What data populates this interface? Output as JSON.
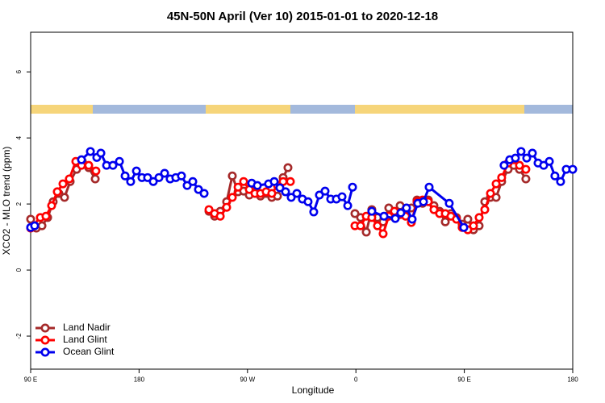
{
  "chart_data": {
    "type": "line",
    "title": "45N-50N April (Ver 10)   2015-01-01 to 2020-12-18",
    "x_label": "Longitude",
    "y_label": "XCO2 - MLO trend (ppm)",
    "xlim": [
      90,
      540
    ],
    "ylim": [
      -3,
      7.2
    ],
    "xticks": [
      {
        "value": 90,
        "label": "90 E"
      },
      {
        "value": 180,
        "label": "180"
      },
      {
        "value": 270,
        "label": "90 W"
      },
      {
        "value": 360,
        "label": "0"
      },
      {
        "value": 450,
        "label": "90 E"
      },
      {
        "value": 540,
        "label": "180"
      }
    ],
    "yticks": [
      -2,
      0,
      2,
      4,
      6
    ],
    "legend": "bottom-left",
    "series": [
      {
        "name": "Land Nadir",
        "color": "#a52a2a",
        "x": [
          90,
          94.7,
          99.4,
          104.1,
          108.7,
          113.4,
          118.1,
          122.8,
          128.2,
          132.9,
          138.2,
          143.6,
          null,
          238,
          242.7,
          247.4,
          252.7,
          257.4,
          262.2,
          266.8,
          271.5,
          276.2,
          280.8,
          285.5,
          290.2,
          294.9,
          299.6,
          303.6,
          null,
          359.2,
          363.9,
          368.6,
          373.2,
          377.9,
          382.6,
          387.3,
          392,
          396.7,
          401.3,
          406,
          410.7,
          415.4,
          420.1,
          424.8,
          429.5,
          434.2,
          438.9,
          443.5,
          448.2,
          452.9,
          457.6,
          462.3,
          467,
          471.7,
          476.4,
          481,
          486.4,
          491.1,
          495.8,
          501.1
        ],
        "values": [
          1.54,
          1.27,
          1.34,
          1.59,
          2.07,
          2.32,
          2.2,
          2.68,
          3.05,
          3.29,
          3.1,
          2.76,
          null,
          1.78,
          1.63,
          1.78,
          2.07,
          2.85,
          2.37,
          2.39,
          2.27,
          2.37,
          2.24,
          2.32,
          2.2,
          2.24,
          2.8,
          3.1,
          null,
          1.71,
          1.59,
          1.15,
          1.83,
          1.59,
          1.46,
          1.88,
          1.63,
          1.95,
          1.78,
          1.88,
          2.12,
          2.02,
          2.12,
          1.95,
          1.78,
          1.46,
          1.71,
          1.59,
          1.39,
          1.54,
          1.22,
          1.34,
          2.07,
          2.2,
          2.2,
          2.68,
          3.05,
          3.17,
          3.05,
          2.76
        ]
      },
      {
        "name": "Land Glint",
        "color": "#ff0000",
        "x": [
          90,
          98,
          102.7,
          107.4,
          112.1,
          116.8,
          122.1,
          127.5,
          132.2,
          138.2,
          144.2,
          null,
          238,
          242.7,
          247.4,
          252.7,
          257.4,
          262.2,
          266.8,
          271.5,
          276.2,
          280.8,
          285.5,
          290.2,
          294.9,
          299.6,
          305.6,
          null,
          359.2,
          363.9,
          368.6,
          373.2,
          377.9,
          382.6,
          387.3,
          392,
          396.7,
          401.3,
          406,
          410.7,
          415.4,
          420.1,
          424.8,
          429.5,
          434.2,
          438.9,
          443.5,
          448.2,
          452.9,
          457.6,
          462.3,
          467,
          471.7,
          476.4,
          481,
          486.4,
          491.1,
          495.8,
          501.1
        ],
        "values": [
          1.27,
          1.59,
          1.63,
          1.95,
          2.37,
          2.61,
          2.76,
          3.29,
          3.17,
          3.17,
          3.0,
          null,
          1.83,
          1.71,
          1.63,
          1.9,
          2.2,
          2.51,
          2.68,
          2.44,
          2.32,
          2.32,
          2.37,
          2.32,
          2.56,
          2.68,
          2.68,
          null,
          1.34,
          1.34,
          1.63,
          1.59,
          1.34,
          1.1,
          1.63,
          1.78,
          1.68,
          1.63,
          1.44,
          2.07,
          2.12,
          2.07,
          1.83,
          1.71,
          1.71,
          1.63,
          1.54,
          1.29,
          1.22,
          1.34,
          1.59,
          1.83,
          2.32,
          2.61,
          2.8,
          3.24,
          3.34,
          3.17,
          3.05
        ]
      },
      {
        "name": "Ocean Glint",
        "color": "#0000ee",
        "x": [
          90,
          93.3,
          null,
          132.2,
          139.6,
          144.9,
          148.3,
          153,
          158.3,
          163.7,
          168.4,
          173,
          177.8,
          182.4,
          187.1,
          191.8,
          196.5,
          201.2,
          205.8,
          210.5,
          215.2,
          219.9,
          224.6,
          229.3,
          234,
          null,
          273.5,
          278.2,
          287.5,
          292.2,
          296.9,
          301.6,
          306.3,
          311,
          315.6,
          320.3,
          325,
          329.7,
          334.4,
          339.1,
          343.8,
          348.5,
          353.2,
          357.2,
          null,
          373.2,
          383.3,
          392.7,
          397.3,
          402,
          406.7,
          411.4,
          416.1,
          420.8,
          437.5,
          449.6,
          null,
          483,
          487.7,
          492.4,
          497.1,
          501.8,
          506.5,
          511.2,
          515.9,
          520.6,
          525.2,
          529.9,
          534.6,
          540
        ],
        "values": [
          1.29,
          1.34,
          null,
          3.34,
          3.59,
          3.41,
          3.54,
          3.17,
          3.17,
          3.29,
          2.85,
          2.68,
          3.0,
          2.8,
          2.8,
          2.68,
          2.8,
          2.93,
          2.76,
          2.8,
          2.85,
          2.56,
          2.68,
          2.44,
          2.32,
          null,
          2.63,
          2.56,
          2.61,
          2.68,
          2.49,
          2.37,
          2.2,
          2.32,
          2.15,
          2.07,
          1.76,
          2.27,
          2.39,
          2.15,
          2.15,
          2.22,
          1.95,
          2.51,
          null,
          1.78,
          1.63,
          1.56,
          1.73,
          1.88,
          1.54,
          2.02,
          2.07,
          2.51,
          2.02,
          1.29,
          null,
          3.17,
          3.34,
          3.39,
          3.59,
          3.39,
          3.54,
          3.24,
          3.17,
          3.29,
          2.85,
          2.68,
          3.05,
          3.05
        ]
      }
    ]
  }
}
